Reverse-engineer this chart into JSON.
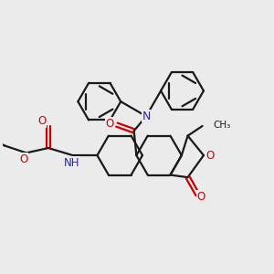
{
  "bg_color": "#ebebeb",
  "line_color": "#1a1a1a",
  "oxygen_color": "#cc0000",
  "nitrogen_color": "#2222cc",
  "lw": 1.6,
  "xlim": [
    -1.1,
    1.1
  ],
  "ylim": [
    -1.1,
    1.1
  ]
}
